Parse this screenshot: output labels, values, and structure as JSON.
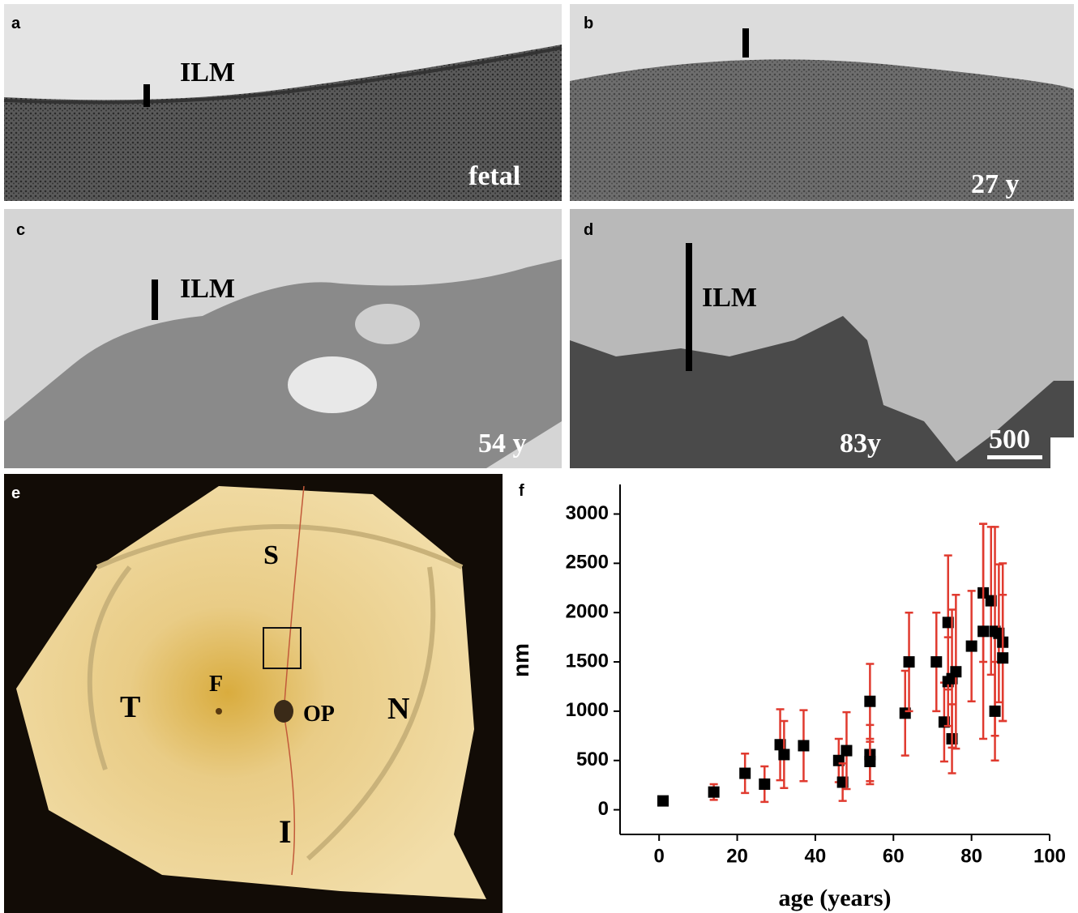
{
  "panels": [
    {
      "label": "a",
      "annotations": [
        "ILM",
        "fetal"
      ]
    },
    {
      "label": "b",
      "annotations": [
        "27 y"
      ]
    },
    {
      "label": "c",
      "annotations": [
        "ILM",
        "54 y"
      ]
    },
    {
      "label": "d",
      "annotations": [
        "ILM",
        "83y",
        "500"
      ]
    },
    {
      "label": "e",
      "annotations": [
        "S",
        "F",
        "T",
        "OP",
        "N",
        "I"
      ]
    }
  ],
  "chart_data": {
    "type": "scatter",
    "panel_label": "f",
    "x_label": "age (years)",
    "y_label": "nm",
    "x": [
      1,
      14,
      22,
      27,
      31,
      32,
      37,
      46,
      47,
      48,
      54,
      54,
      54,
      63,
      64,
      71,
      73,
      74,
      74,
      75,
      75,
      76,
      80,
      83,
      83,
      85,
      86,
      86,
      87,
      88,
      88
    ],
    "values": [
      90,
      180,
      370,
      260,
      660,
      560,
      650,
      500,
      280,
      600,
      1100,
      560,
      490,
      980,
      1500,
      1500,
      890,
      1300,
      1900,
      720,
      1330,
      1400,
      1660,
      2200,
      1810,
      2120,
      1810,
      1000,
      1790,
      1700,
      1540
    ],
    "errors": [
      40,
      80,
      200,
      180,
      360,
      340,
      360,
      220,
      190,
      390,
      380,
      300,
      200,
      430,
      500,
      500,
      400,
      450,
      680,
      350,
      700,
      780,
      560,
      700,
      1090,
      750,
      1060,
      500,
      700,
      800,
      640
    ],
    "color": "#000000",
    "error_color": "#e03a2f",
    "xlim": [
      -10,
      100
    ],
    "xticks": [
      0,
      20,
      40,
      60,
      80,
      100
    ],
    "ylim": [
      -250,
      3300
    ],
    "yticks": [
      0,
      500,
      1000,
      1500,
      2000,
      2500,
      3000
    ]
  }
}
